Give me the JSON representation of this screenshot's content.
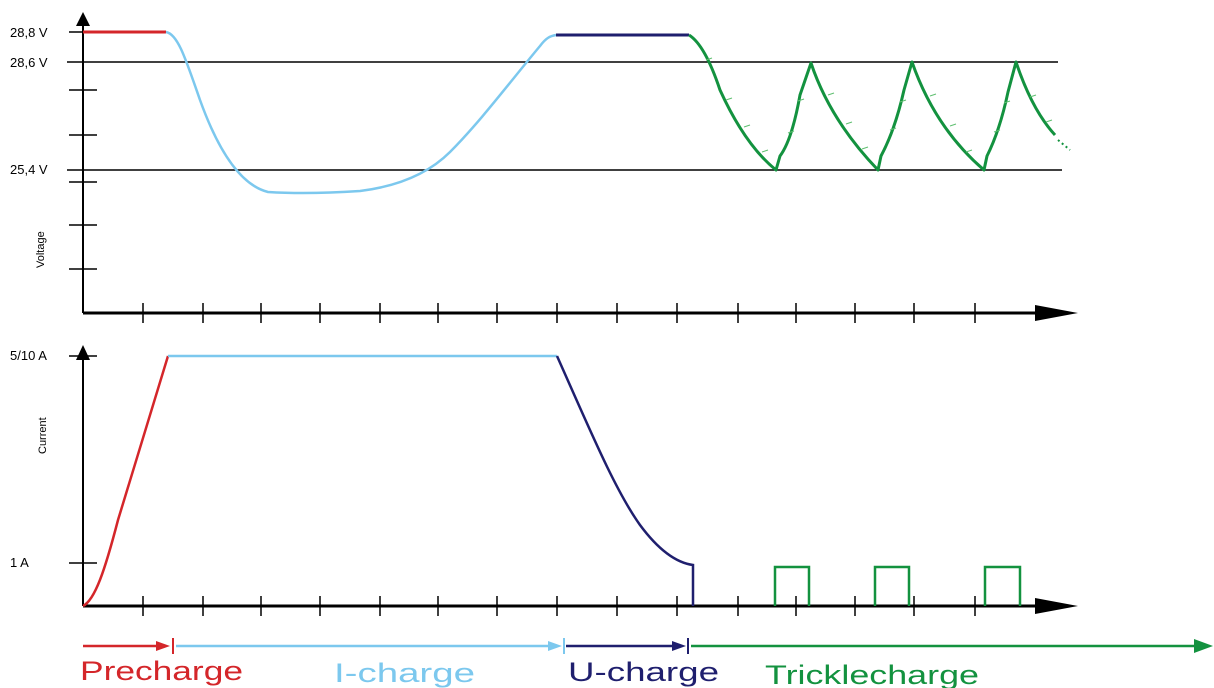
{
  "voltage_chart": {
    "ylabel": "Voltage",
    "ticks": [
      "28,8 V",
      "28,6 V",
      "25,4 V"
    ]
  },
  "current_chart": {
    "ylabel": "Current",
    "ticks": [
      "5/10 A",
      "1 A"
    ]
  },
  "phases": [
    {
      "name": "Precharge",
      "color": "#d4262a"
    },
    {
      "name": "I-charge",
      "color": "#7cc8ee"
    },
    {
      "name": "U-charge",
      "color": "#1f1f6e"
    },
    {
      "name": "Tricklecharge",
      "color": "#13923f"
    }
  ],
  "colors": {
    "precharge": "#d4262a",
    "icharge": "#7cc8ee",
    "ucharge": "#1f1f6e",
    "trickle": "#13923f",
    "axis": "#000000"
  },
  "icons": [
    "arrow-up-icon",
    "arrow-right-icon"
  ]
}
